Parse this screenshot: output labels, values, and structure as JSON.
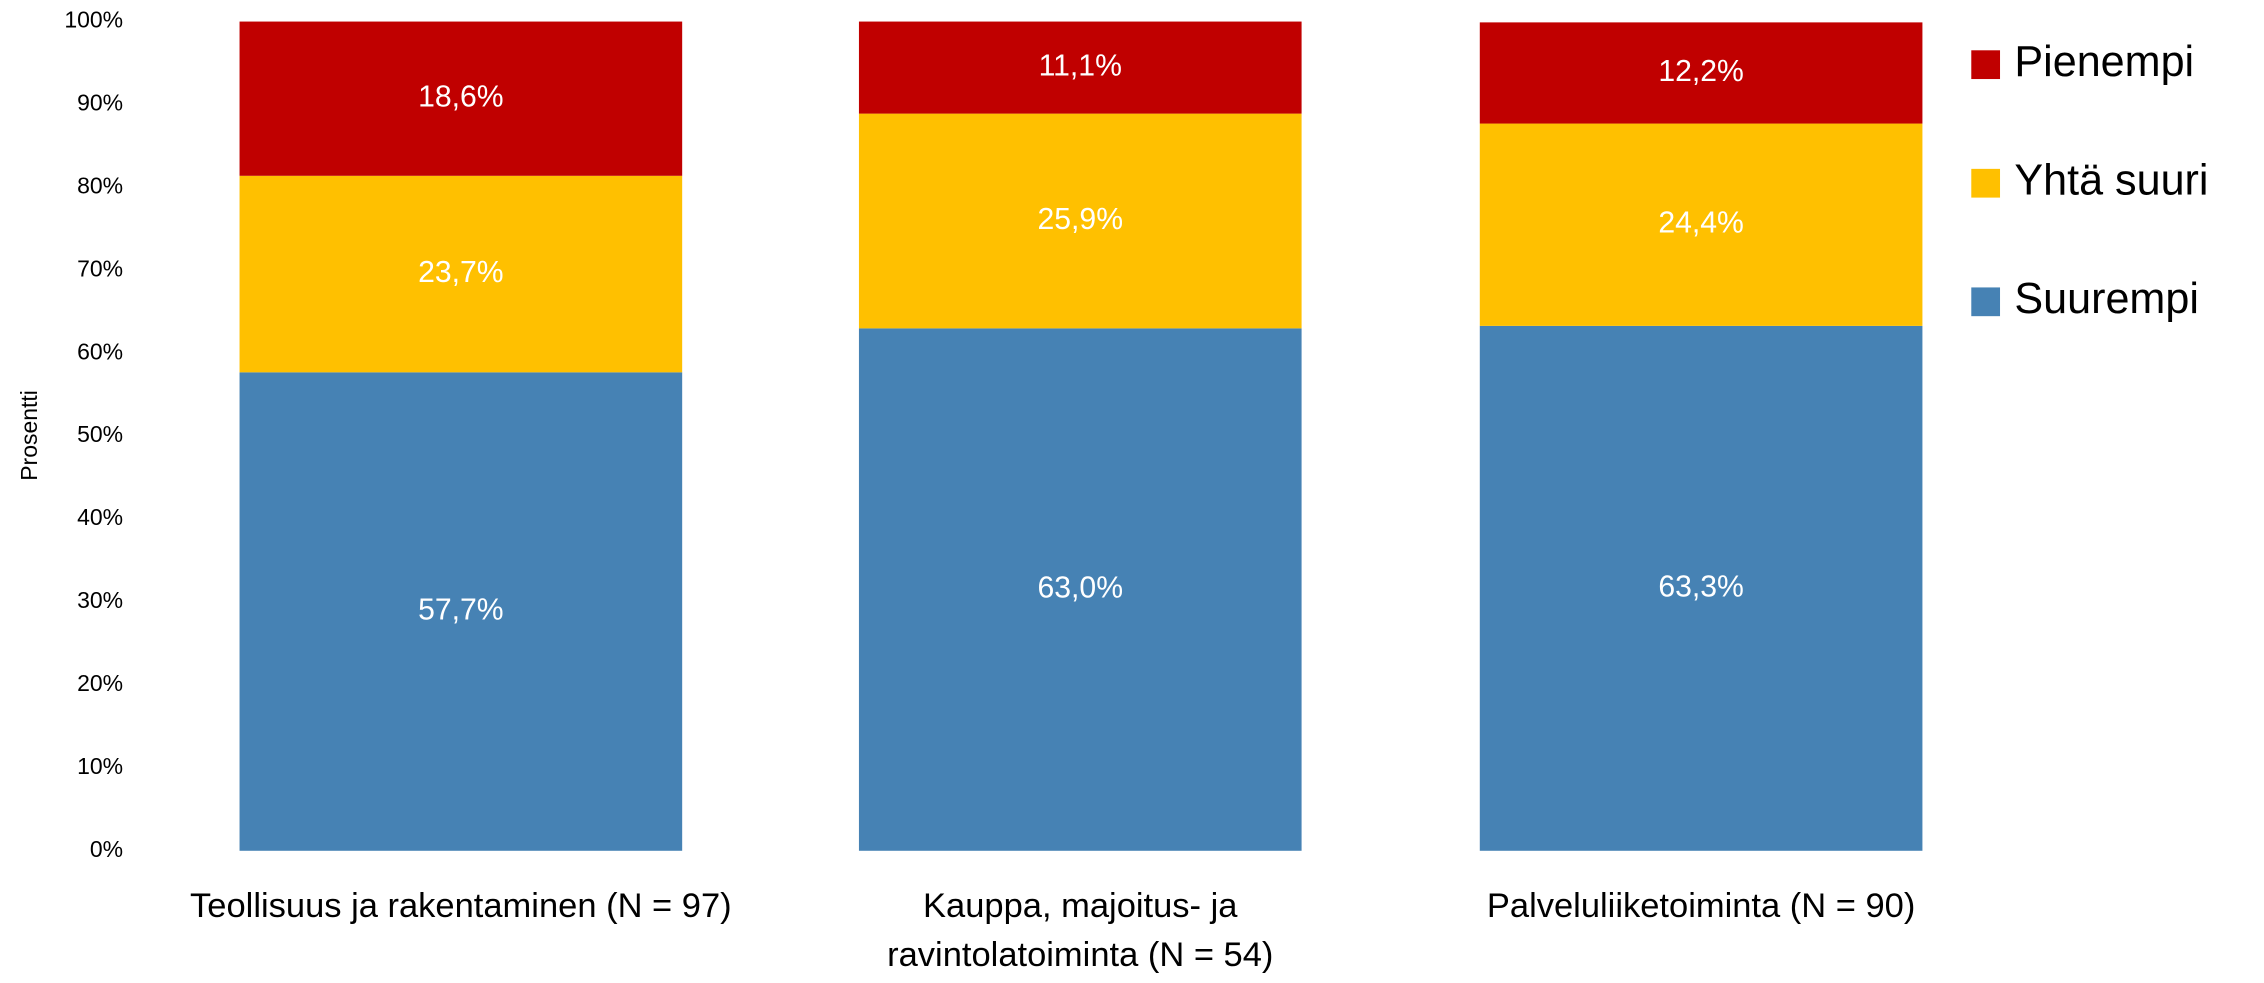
{
  "chart_data": {
    "type": "stacked_bar",
    "ylabel": "Prosentti",
    "categories": [
      "Teollisuus ja rakentaminen (N = 97)",
      "Kauppa, majoitus- ja\nravintolatoiminta (N = 54)",
      "Palveluliiketoiminta (N = 90)"
    ],
    "series": [
      {
        "name": "Suurempi",
        "color": "#4682b4",
        "values": [
          57.7,
          63.0,
          63.3
        ],
        "value_labels": [
          "57,7%",
          "63,0%",
          "63,3%"
        ]
      },
      {
        "name": "Yhtä suuri",
        "color": "#ffc000",
        "values": [
          23.7,
          25.9,
          24.4
        ],
        "value_labels": [
          "23,7%",
          "25,9%",
          "24,4%"
        ]
      },
      {
        "name": "Pienempi",
        "color": "#c00000",
        "values": [
          18.6,
          11.1,
          12.2
        ],
        "value_labels": [
          "18,6%",
          "11,1%",
          "12,2%"
        ]
      }
    ],
    "ylim": [
      0,
      100
    ],
    "yticks": [
      {
        "value": 0,
        "label": "0%"
      },
      {
        "value": 10,
        "label": "10%"
      },
      {
        "value": 20,
        "label": "20%"
      },
      {
        "value": 30,
        "label": "30%"
      },
      {
        "value": 40,
        "label": "40%"
      },
      {
        "value": 50,
        "label": "50%"
      },
      {
        "value": 60,
        "label": "60%"
      },
      {
        "value": 70,
        "label": "70%"
      },
      {
        "value": 80,
        "label": "80%"
      },
      {
        "value": 90,
        "label": "90%"
      },
      {
        "value": 100,
        "label": "100%"
      }
    ],
    "legend": "right",
    "grid": false
  }
}
